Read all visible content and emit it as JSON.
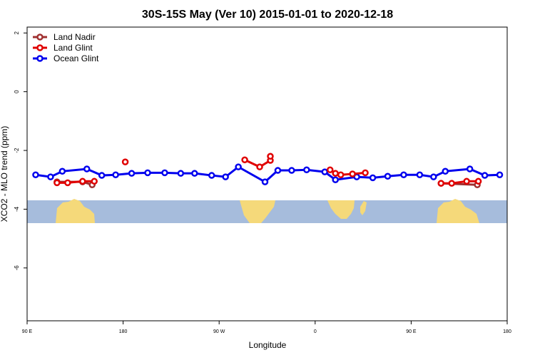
{
  "chart_data": {
    "type": "line",
    "title": "30S-15S May (Ver 10)   2015-01-01 to 2020-12-18",
    "x_label": "Longitude",
    "y_label": "XCO2 - MLO trend (ppm)",
    "xlim": [
      90,
      540
    ],
    "xticks": [
      {
        "value": 90,
        "label": "90 E"
      },
      180,
      {
        "value": 270,
        "label": "90 W"
      },
      {
        "value": 360,
        "label": "0"
      },
      {
        "value": 450,
        "label": "90 E"
      },
      {
        "value": 540,
        "label": "180"
      }
    ],
    "ylim": [
      -7.8,
      2.2
    ],
    "yticks": [
      -6,
      -4,
      -2,
      0,
      2
    ],
    "legend": "top-left",
    "series": [
      {
        "name": "Land Nadir",
        "color": "#a03030",
        "x": [
          118,
          142,
          151,
          null,
          478,
          512
        ],
        "values": [
          -3.07,
          -3.07,
          -3.17,
          null,
          -3.12,
          -3.17
        ]
      },
      {
        "name": "Land Glint",
        "color": "#e00000",
        "x": [
          118,
          128,
          142,
          153,
          null,
          182,
          null,
          294,
          308,
          318,
          318,
          null,
          374,
          379,
          384,
          395,
          407,
          null,
          478,
          488,
          502,
          513
        ],
        "values": [
          -3.1,
          -3.1,
          -3.05,
          -3.05,
          null,
          -2.39,
          null,
          -2.32,
          -2.56,
          -2.34,
          -2.2,
          null,
          -2.66,
          -2.78,
          -2.83,
          -2.8,
          -2.76,
          null,
          -3.12,
          -3.12,
          -3.05,
          -3.05
        ]
      },
      {
        "name": "Ocean Glint",
        "color": "#0000ee",
        "x": [
          98,
          112,
          123,
          146,
          160,
          173,
          188,
          203,
          219,
          234,
          247,
          263,
          276,
          288,
          313,
          325,
          338,
          352,
          369,
          379,
          399,
          414,
          428,
          443,
          458,
          471,
          482,
          505,
          519,
          533
        ],
        "values": [
          -2.83,
          -2.9,
          -2.71,
          -2.63,
          -2.85,
          -2.83,
          -2.78,
          -2.76,
          -2.76,
          -2.78,
          -2.78,
          -2.85,
          -2.9,
          -2.56,
          -3.07,
          -2.68,
          -2.68,
          -2.66,
          -2.73,
          -3.0,
          -2.9,
          -2.93,
          -2.88,
          -2.83,
          -2.83,
          -2.9,
          -2.71,
          -2.63,
          -2.85,
          -2.83
        ]
      }
    ]
  }
}
